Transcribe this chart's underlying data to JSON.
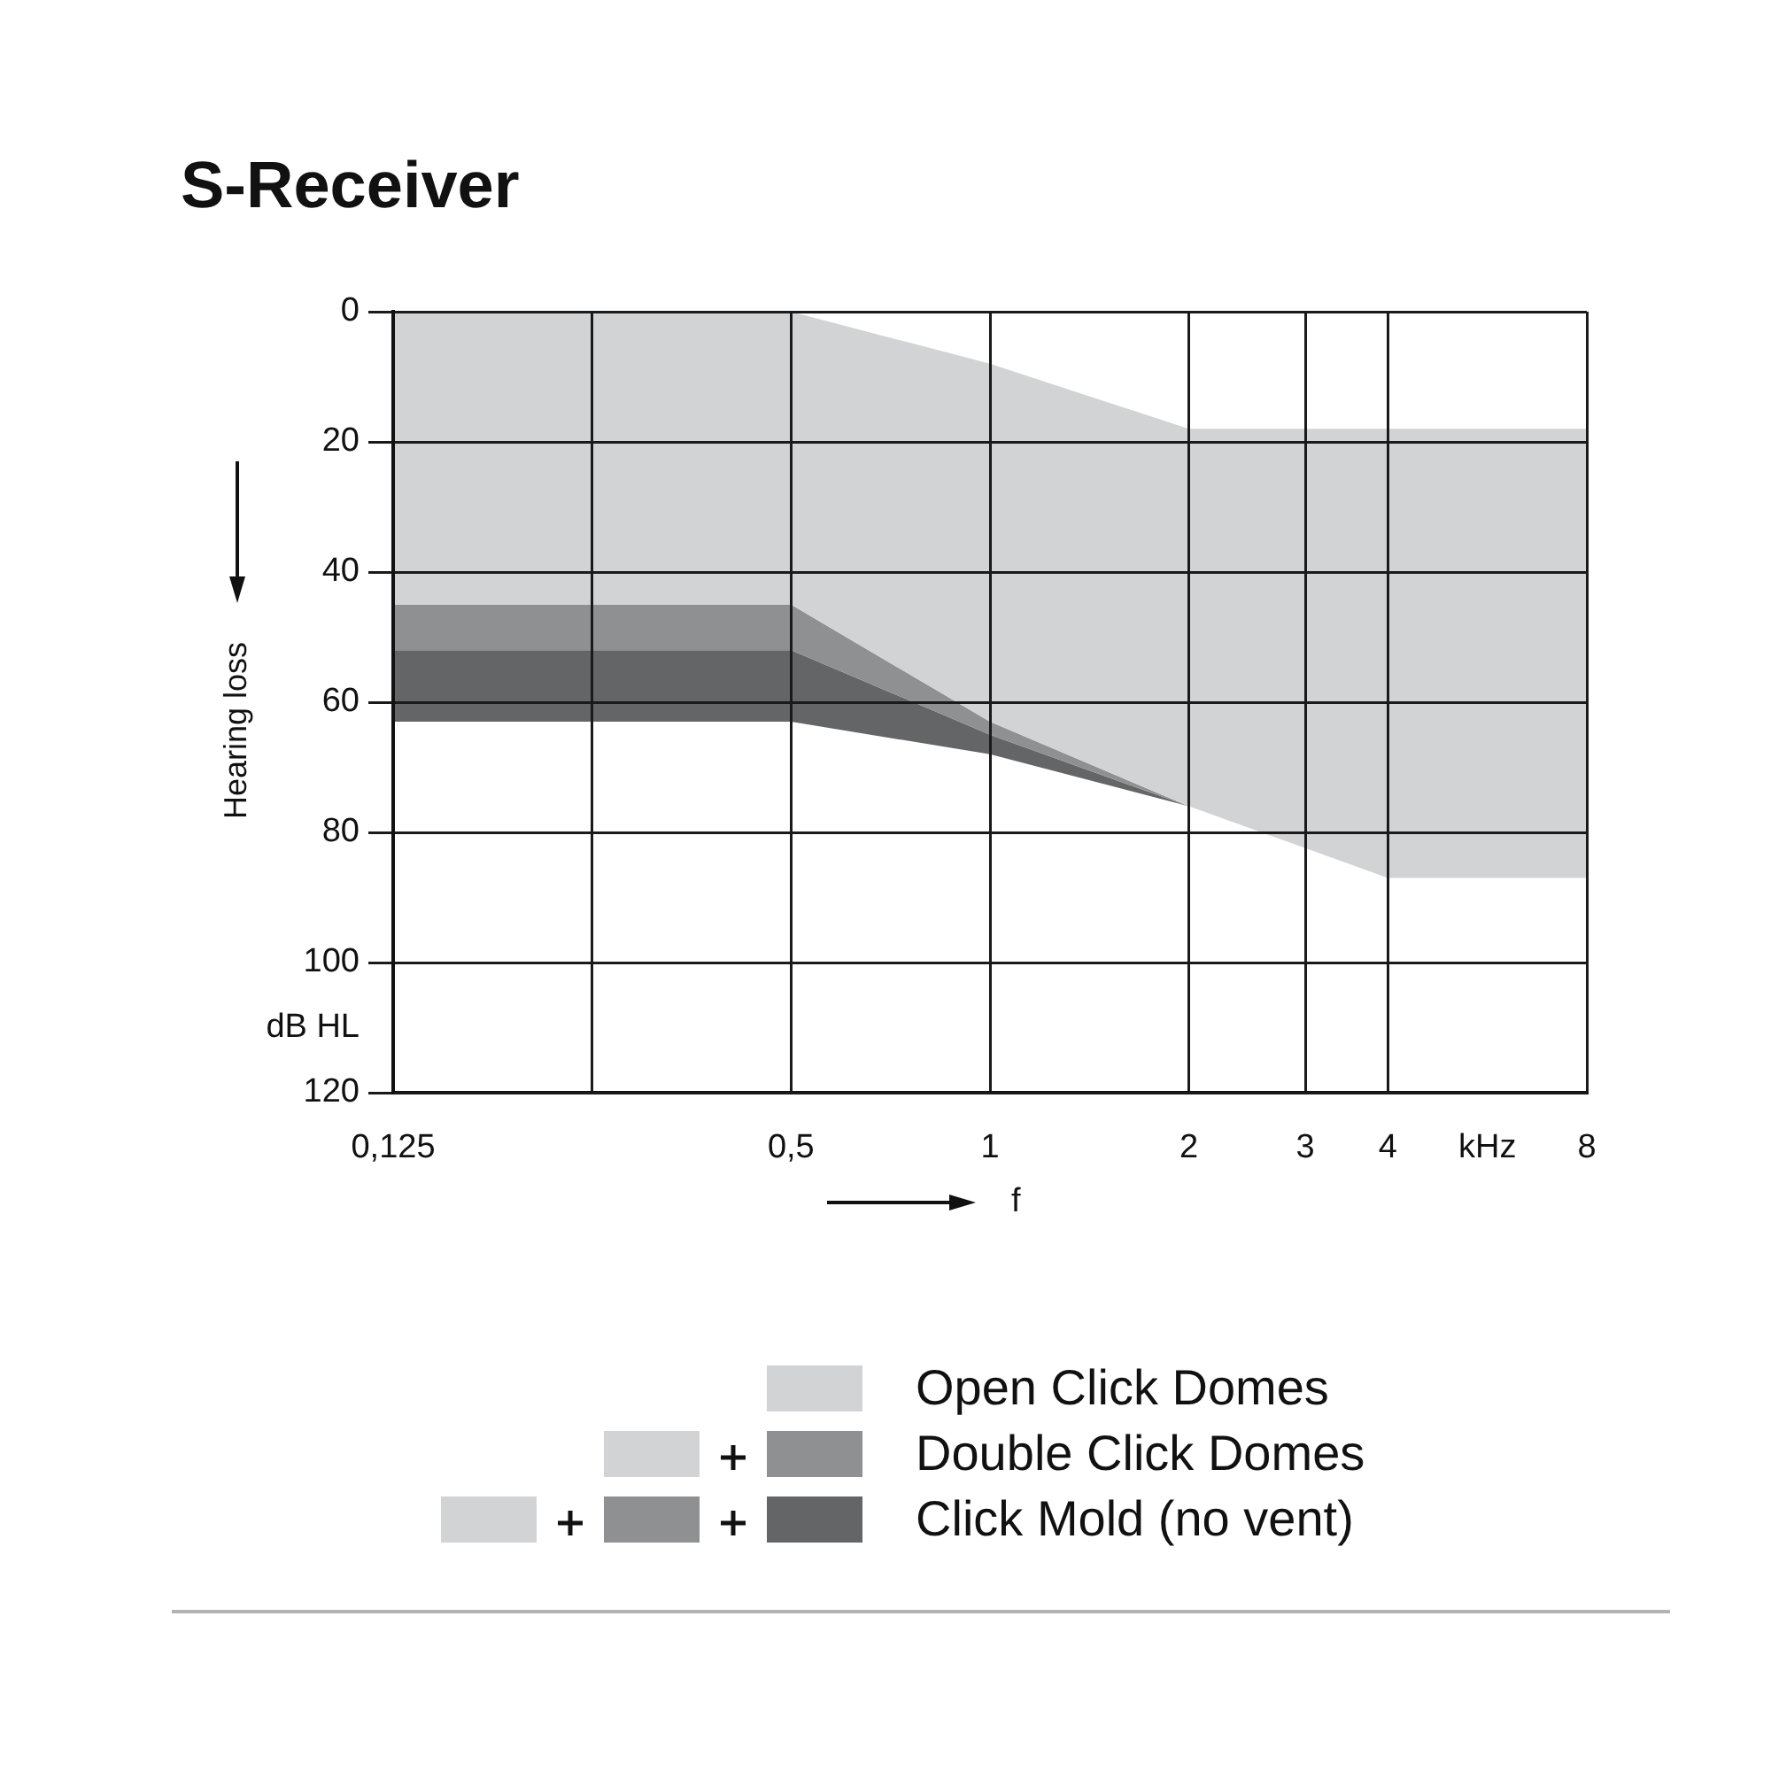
{
  "chart_data": {
    "type": "area",
    "title": "S-Receiver",
    "xlabel": "f",
    "ylabel": "Hearing loss",
    "series": [
      {
        "name": "Open Click Domes",
        "color": "#d2d3d4",
        "x": [
          0.125,
          0.5,
          1,
          2,
          4,
          8
        ],
        "values": [
          null,
          null,
          null,
          null,
          null,
          null
        ],
        "lower": [
          0,
          0,
          8,
          18,
          18,
          18
        ],
        "upper": [
          45,
          45,
          63,
          76,
          87,
          87
        ]
      },
      {
        "name": "Double Click Domes",
        "color": "#8f9092",
        "x": [
          0.125,
          0.5,
          1,
          2
        ],
        "values": [
          null,
          null,
          null,
          null
        ],
        "lower": [
          45,
          45,
          63,
          76
        ],
        "upper": [
          52,
          52,
          65,
          76
        ]
      },
      {
        "name": "Click Mold (no vent)",
        "color": "#646567",
        "x": [
          0.125,
          0.5,
          1,
          2
        ],
        "values": [
          null,
          null,
          null,
          null
        ],
        "lower": [
          52,
          52,
          65,
          76
        ],
        "upper": [
          63,
          63,
          68,
          76
        ]
      }
    ],
    "xlim": [
      0.125,
      8
    ],
    "xticks": [
      {
        "value": 0.125,
        "label": "0,125"
      },
      {
        "value": 0.25,
        "label": null
      },
      {
        "value": 0.5,
        "label": "0,5"
      },
      1,
      2,
      3,
      4,
      8
    ],
    "ylim": [
      120,
      0
    ],
    "yticks": [
      0,
      20,
      40,
      60,
      80,
      100,
      120
    ],
    "log": "x",
    "grid": true,
    "legend": "bottom",
    "annotations": [
      "dB HL",
      "kHz"
    ]
  }
}
